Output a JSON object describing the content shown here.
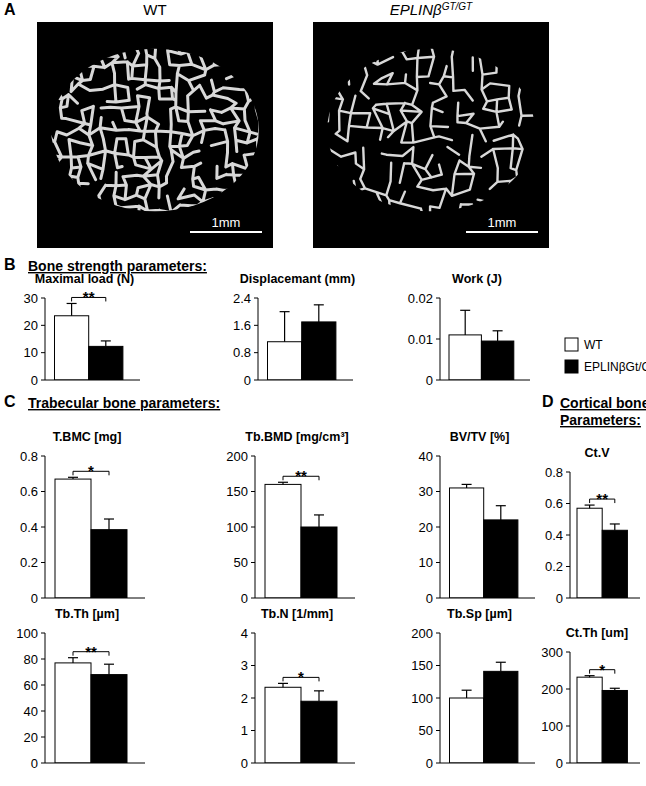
{
  "figure": {
    "panel_labels": [
      "A",
      "B",
      "C",
      "D"
    ],
    "images": [
      {
        "label": "WT",
        "scale_bar": "1mm"
      },
      {
        "label": "EPLINβ",
        "label_superscript": "GT/GT",
        "scale_bar": "1mm"
      }
    ],
    "headings": [
      [
        "Bone strength parameters:"
      ],
      [
        "Trabecular bone parameters:"
      ],
      [
        "Cortical bone",
        "Parameters:"
      ]
    ],
    "legend": [
      {
        "name": "WT",
        "color": "#ffffff"
      },
      {
        "name": "EPLINβGt/Gt",
        "color": "#000000"
      }
    ]
  },
  "chart_data": [
    {
      "type": "bar",
      "title": "Maximal load (N)",
      "categories": [
        null,
        null
      ],
      "values": [
        23.5,
        12.3
      ],
      "errors": [
        4.5,
        2
      ],
      "colors": [
        "#ffffff",
        "#000000"
      ],
      "ylim": [
        0,
        30
      ],
      "yticks": [
        0,
        10,
        20,
        30
      ],
      "significance": "**"
    },
    {
      "type": "bar",
      "title": "Displacemant (mm)",
      "categories": [
        null,
        null
      ],
      "values": [
        1.12,
        1.7
      ],
      "errors": [
        0.88,
        0.5
      ],
      "colors": [
        "#ffffff",
        "#000000"
      ],
      "ylim": [
        0,
        2.4
      ],
      "yticks": [
        0,
        0.8,
        1.6,
        2.4
      ]
    },
    {
      "type": "bar",
      "title": "Work (J)",
      "categories": [
        null,
        null
      ],
      "values": [
        0.011,
        0.0095
      ],
      "errors": [
        0.006,
        0.0025
      ],
      "colors": [
        "#ffffff",
        "#000000"
      ],
      "ylim": [
        0,
        0.02
      ],
      "yticks": [
        0,
        0.01,
        0.02
      ]
    },
    {
      "type": "bar",
      "title": "T.BMC [mg]",
      "categories": [
        null,
        null
      ],
      "values": [
        0.67,
        0.385
      ],
      "errors": [
        0.01,
        0.06
      ],
      "colors": [
        "#ffffff",
        "#000000"
      ],
      "ylim": [
        0,
        0.8
      ],
      "yticks": [
        0,
        0.2,
        0.4,
        0.6,
        0.8
      ],
      "significance": "*"
    },
    {
      "type": "bar",
      "title": "Tb.BMD [mg/cm³]",
      "categories": [
        null,
        null
      ],
      "values": [
        160,
        100
      ],
      "errors": [
        3,
        17
      ],
      "colors": [
        "#ffffff",
        "#000000"
      ],
      "ylim": [
        0,
        200
      ],
      "yticks": [
        0,
        50,
        100,
        150,
        200
      ],
      "significance": "**"
    },
    {
      "type": "bar",
      "title": "BV/TV [%]",
      "categories": [
        null,
        null
      ],
      "values": [
        31,
        22
      ],
      "errors": [
        1,
        4
      ],
      "colors": [
        "#ffffff",
        "#000000"
      ],
      "ylim": [
        0,
        40
      ],
      "yticks": [
        0,
        10,
        20,
        30,
        40
      ]
    },
    {
      "type": "bar",
      "title": "Ct.V",
      "categories": [
        null,
        null
      ],
      "values": [
        0.57,
        0.43
      ],
      "errors": [
        0.02,
        0.04
      ],
      "colors": [
        "#ffffff",
        "#000000"
      ],
      "ylim": [
        0,
        0.8
      ],
      "yticks": [
        0,
        0.2,
        0.4,
        0.6,
        0.8
      ],
      "significance": "**"
    },
    {
      "type": "bar",
      "title": "Tb.Th [µm]",
      "categories": [
        null,
        null
      ],
      "values": [
        77,
        68
      ],
      "errors": [
        4,
        8
      ],
      "colors": [
        "#ffffff",
        "#000000"
      ],
      "ylim": [
        0,
        100
      ],
      "yticks": [
        0,
        20,
        40,
        60,
        80,
        100
      ],
      "significance": "**"
    },
    {
      "type": "bar",
      "title": "Tb.N [1/mm]",
      "categories": [
        null,
        null
      ],
      "values": [
        2.33,
        1.9
      ],
      "errors": [
        0.12,
        0.32
      ],
      "colors": [
        "#ffffff",
        "#000000"
      ],
      "ylim": [
        0,
        4
      ],
      "yticks": [
        0,
        1,
        2,
        3,
        4
      ],
      "significance": "*"
    },
    {
      "type": "bar",
      "title": "Tb.Sp [µm]",
      "categories": [
        null,
        null
      ],
      "values": [
        100,
        141
      ],
      "errors": [
        12,
        14
      ],
      "colors": [
        "#ffffff",
        "#000000"
      ],
      "ylim": [
        0,
        200
      ],
      "yticks": [
        0,
        50,
        100,
        150,
        200
      ]
    },
    {
      "type": "bar",
      "title": "Ct.Th [um]",
      "categories": [
        null,
        null
      ],
      "values": [
        232,
        196
      ],
      "errors": [
        4,
        6
      ],
      "colors": [
        "#ffffff",
        "#000000"
      ],
      "ylim": [
        0,
        300
      ],
      "yticks": [
        0,
        100,
        200,
        300
      ],
      "significance": "*"
    }
  ]
}
